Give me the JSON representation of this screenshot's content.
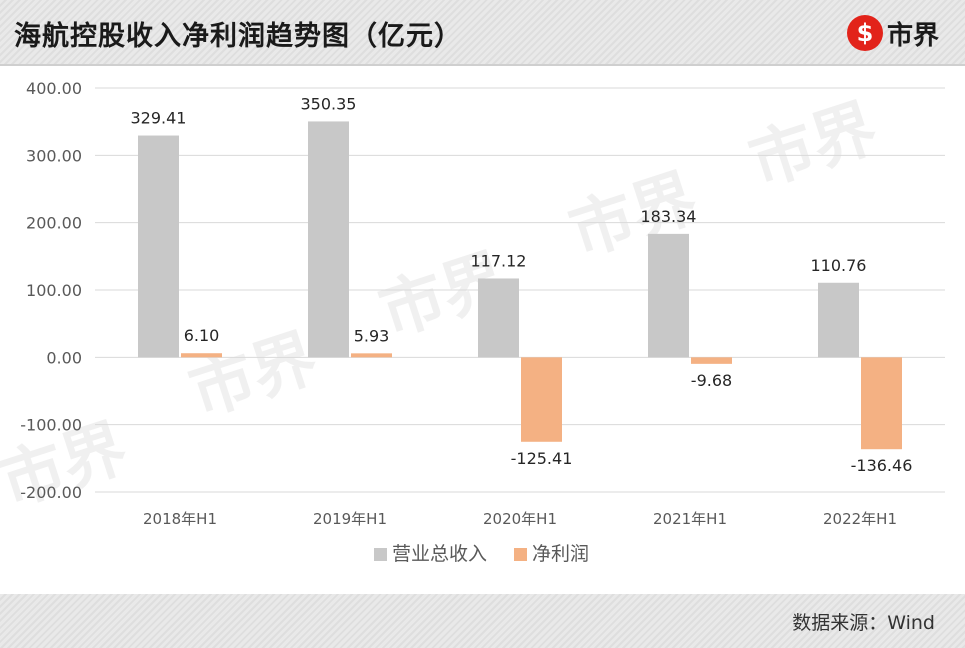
{
  "header": {
    "title": "海航控股收入净利润趋势图（亿元）",
    "logo_mark": "$",
    "logo_text": "市界"
  },
  "footer": {
    "source": "数据来源：Wind"
  },
  "watermark": "市界",
  "colors": {
    "revenue": "#c8c8c8",
    "profit": "#f4b183",
    "axis_text": "#595959",
    "grid": "#d9d9d9"
  },
  "chart_data": {
    "type": "bar",
    "title": "",
    "xlabel": "",
    "ylabel": "",
    "categories": [
      "2018年H1",
      "2019年H1",
      "2020年H1",
      "2021年H1",
      "2022年H1"
    ],
    "series": [
      {
        "name": "营业总收入",
        "values": [
          329.41,
          350.35,
          117.12,
          183.34,
          110.76
        ]
      },
      {
        "name": "净利润",
        "values": [
          6.1,
          5.93,
          -125.41,
          -9.68,
          -136.46
        ]
      }
    ],
    "ylim": [
      -200,
      400
    ],
    "yticks": [
      "400.00",
      "300.00",
      "200.00",
      "100.00",
      "0.00",
      "-100.00",
      "-200.00"
    ],
    "grid": true,
    "legend": "bottom"
  }
}
